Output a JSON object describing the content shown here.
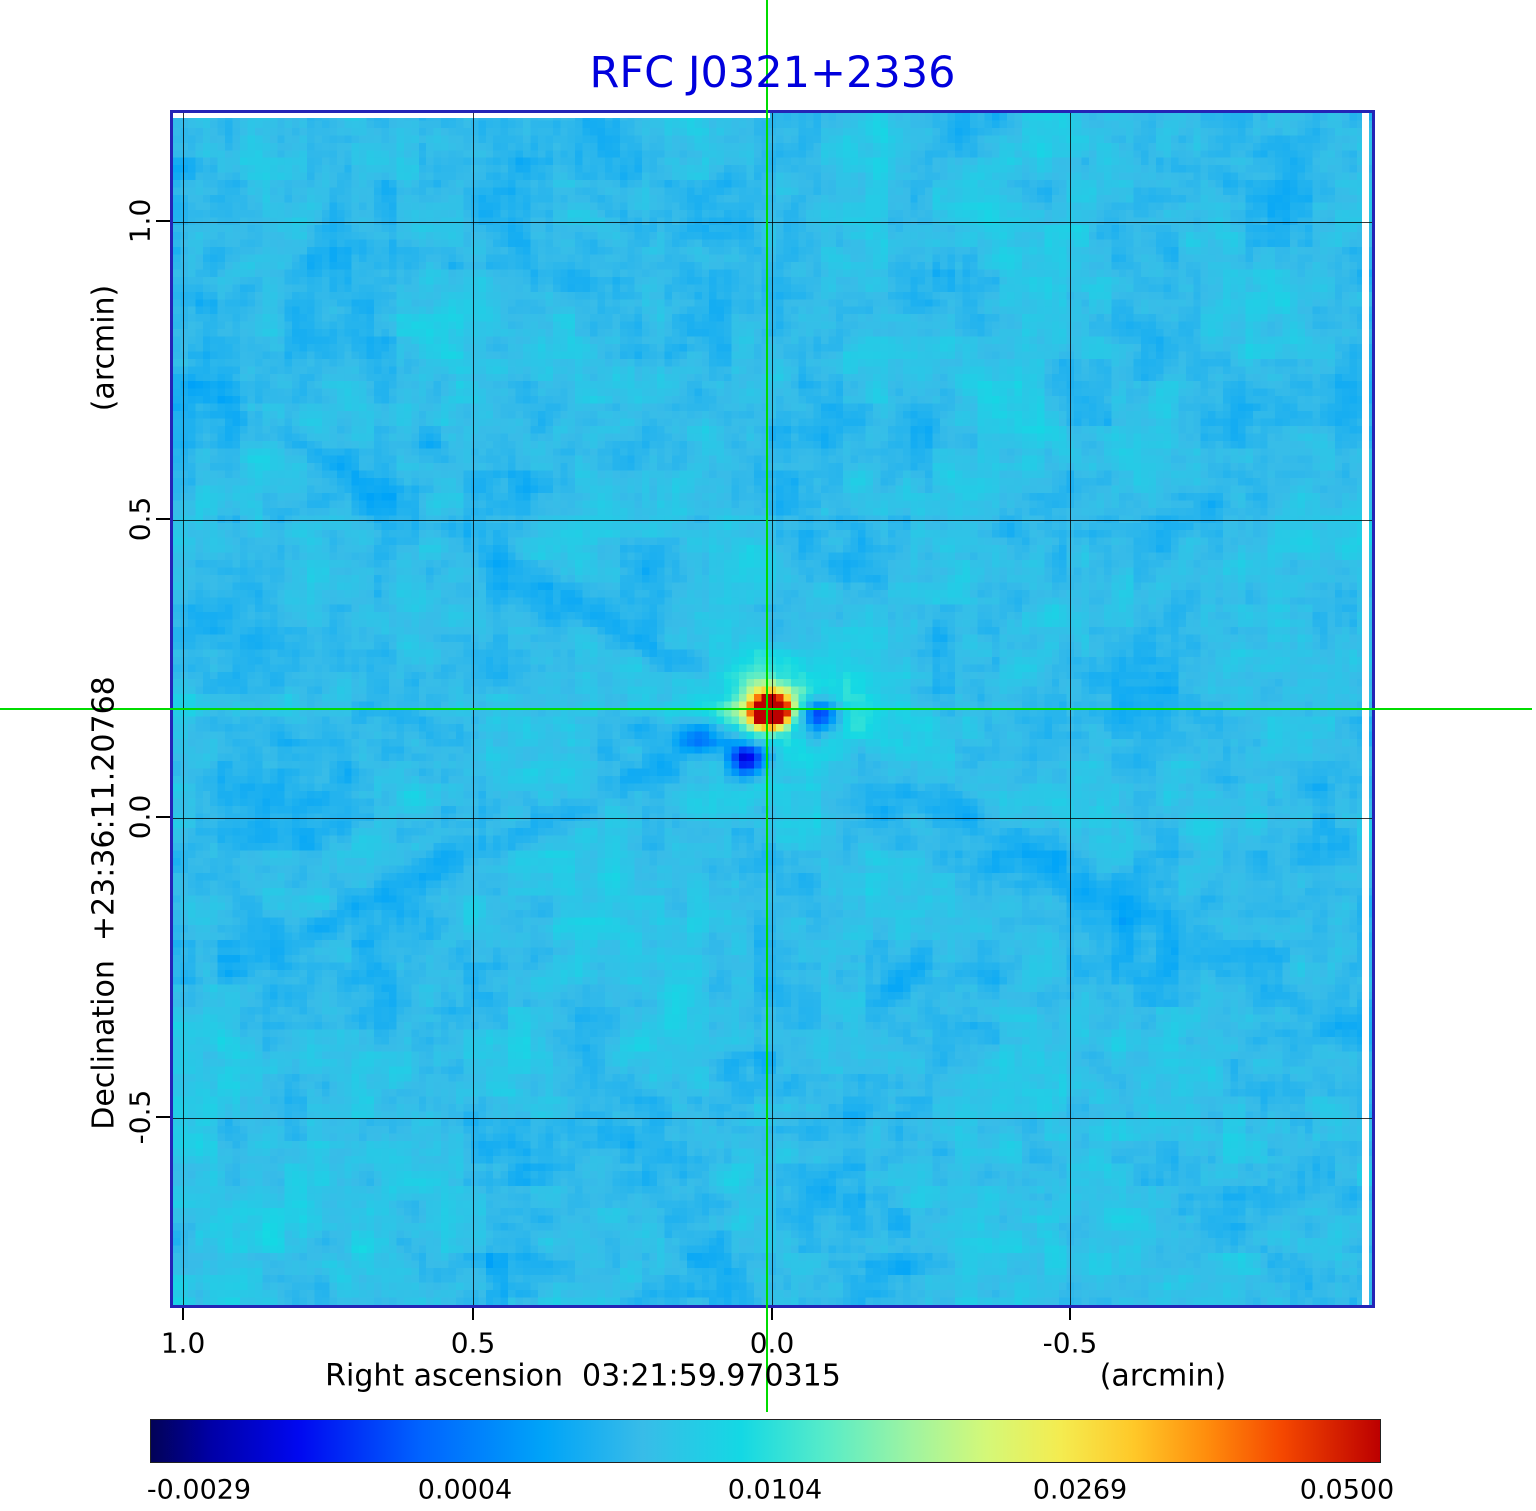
{
  "chart_data": {
    "type": "heatmap",
    "title": "RFC J0321+2336",
    "title_color": "#0000dd",
    "x_axis": {
      "label": "Right ascension  03:21:59.970315",
      "unit_label": "(arcmin)",
      "tick_labels": [
        "1.0",
        "0.5",
        "0.0",
        "-0.5"
      ],
      "range_left_to_right": [
        1.02,
        -1.02
      ]
    },
    "y_axis": {
      "label": "Declination  +23:36:11.20768",
      "unit_label": "(arcmin)",
      "tick_labels": [
        "1.0",
        "0.5",
        "0.0",
        "-0.5"
      ],
      "range_bottom_to_top": [
        -0.81,
        1.19
      ]
    },
    "grid": true,
    "crosshair": {
      "color": "#00dc00",
      "x_arcmin": 0.01,
      "y_arcmin": 0.18
    },
    "source_peak": {
      "description": "bright compact source at crosshair intersection",
      "peak_value": 0.05
    },
    "colorbar": {
      "tick_labels": [
        "-0.0029",
        "0.0004",
        "0.0104",
        "0.0269",
        "0.0500"
      ],
      "min_value": -0.0029,
      "max_value": 0.05,
      "stops": [
        {
          "pos": 0.0,
          "color": "#020257"
        },
        {
          "pos": 0.05,
          "color": "#0000a8"
        },
        {
          "pos": 0.12,
          "color": "#0008f0"
        },
        {
          "pos": 0.22,
          "color": "#0064ff"
        },
        {
          "pos": 0.32,
          "color": "#00a4f8"
        },
        {
          "pos": 0.4,
          "color": "#38bce8"
        },
        {
          "pos": 0.48,
          "color": "#14d8e4"
        },
        {
          "pos": 0.55,
          "color": "#58ecc8"
        },
        {
          "pos": 0.62,
          "color": "#a0f4a0"
        },
        {
          "pos": 0.68,
          "color": "#d4f878"
        },
        {
          "pos": 0.74,
          "color": "#f4ec50"
        },
        {
          "pos": 0.8,
          "color": "#ffc828"
        },
        {
          "pos": 0.86,
          "color": "#ff8c0c"
        },
        {
          "pos": 0.92,
          "color": "#f54800"
        },
        {
          "pos": 1.0,
          "color": "#bc0000"
        }
      ]
    }
  }
}
